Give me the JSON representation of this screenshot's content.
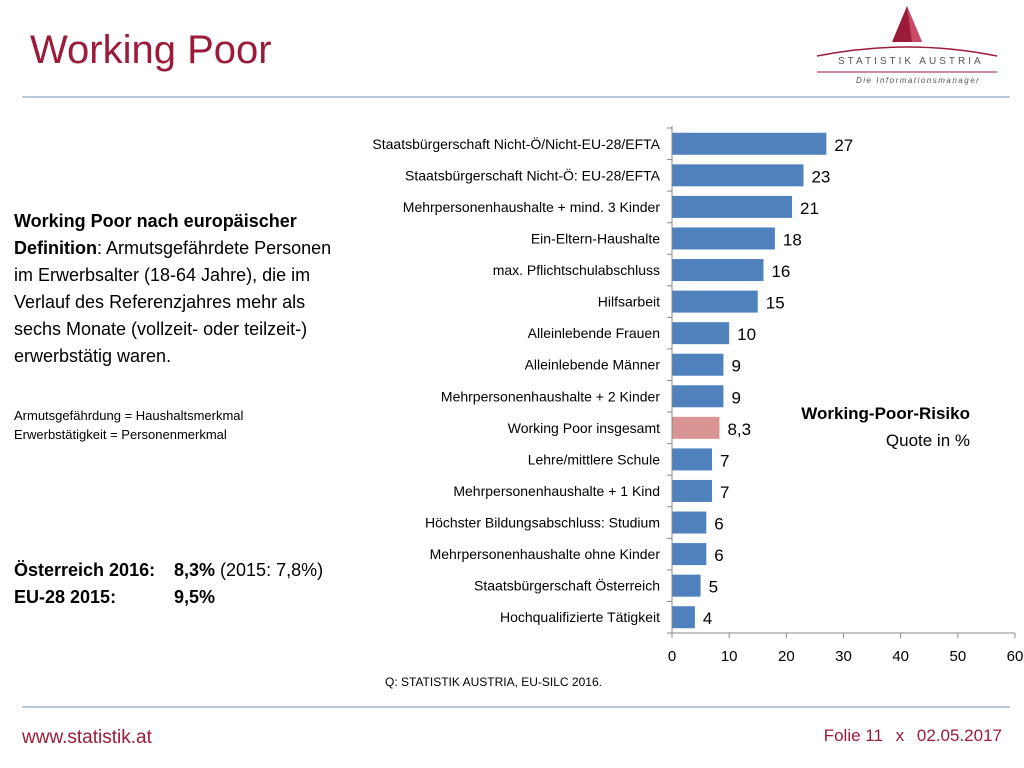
{
  "header": {
    "title": "Working Poor",
    "logo_text": "STATISTIK AUSTRIA",
    "logo_subtitle": "Die Informationsmanager"
  },
  "definition": {
    "bold_part1": "Working Poor nach europäischer",
    "bold_part2": "Definition",
    "text": ": Armutsgefährdete Personen im Erwerbsalter (18-64 Jahre), die im Verlauf des Referenzjahres mehr als sechs Monate (vollzeit- oder teilzeit-) erwerbstätig waren."
  },
  "notes": {
    "line1": "Armutsgefährdung = Haushaltsmerkmal",
    "line2": "Erwerbstätigkeit = Personenmerkmal"
  },
  "stats": {
    "at_label": "Österreich 2016:",
    "at_value": "8,3%",
    "at_prev": " (2015: 7,8%)",
    "eu_label": "EU-28 2015:",
    "eu_value": "9,5%"
  },
  "legend": {
    "line1": "Working-Poor-Risiko",
    "line2": "Quote in %"
  },
  "chart_data": {
    "type": "bar",
    "orientation": "horizontal",
    "categories": [
      "Staatsbürgerschaft Nicht-Ö/Nicht-EU-28/EFTA",
      "Staatsbürgerschaft Nicht-Ö: EU-28/EFTA",
      "Mehrpersonenhaushalte + mind. 3 Kinder",
      "Ein-Eltern-Haushalte",
      "max. Pflichtschulabschluss",
      "Hilfsarbeit",
      "Alleinlebende Frauen",
      "Alleinlebende Männer",
      "Mehrpersonenhaushalte + 2 Kinder",
      "Working Poor insgesamt",
      "Lehre/mittlere Schule",
      "Mehrpersonenhaushalte + 1 Kind",
      "Höchster Bildungsabschluss: Studium",
      "Mehrpersonenhaushalte ohne Kinder",
      "Staatsbürgerschaft Österreich",
      "Hochqualifizierte Tätigkeit"
    ],
    "values": [
      27,
      23,
      21,
      18,
      16,
      15,
      10,
      9,
      9,
      8.3,
      7,
      7,
      6,
      6,
      5,
      4
    ],
    "value_labels": [
      "27",
      "23",
      "21",
      "18",
      "16",
      "15",
      "10",
      "9",
      "9",
      "8,3",
      "7",
      "7",
      "6",
      "6",
      "5",
      "4"
    ],
    "highlight_index": 9,
    "xlim": [
      0,
      60
    ],
    "xticks": [
      0,
      10,
      20,
      30,
      40,
      50,
      60
    ],
    "bar_color": "#4f81bd",
    "highlight_color": "#d99594",
    "grid": false
  },
  "source": "Q: STATISTIK AUSTRIA, EU-SILC 2016.",
  "footer": {
    "url": "www.statistik.at",
    "slide": "Folie 11",
    "separator": "x",
    "date": "02.05.2017"
  }
}
